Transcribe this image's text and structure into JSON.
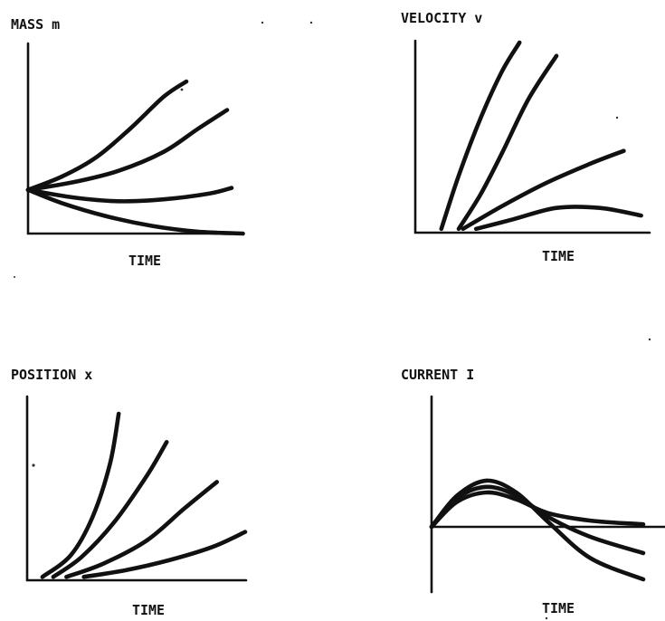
{
  "chart_data": [
    {
      "type": "line",
      "title": "MASS m",
      "xlabel": "TIME",
      "ylabel": "",
      "grid": false,
      "series": [
        {
          "x": [
            0,
            0.15,
            0.3,
            0.45,
            0.6,
            0.7
          ],
          "values": [
            0.23,
            0.3,
            0.4,
            0.55,
            0.72,
            0.8
          ]
        },
        {
          "x": [
            0,
            0.2,
            0.4,
            0.6,
            0.75,
            0.88
          ],
          "values": [
            0.23,
            0.27,
            0.33,
            0.43,
            0.55,
            0.65
          ]
        },
        {
          "x": [
            0,
            0.2,
            0.4,
            0.6,
            0.8,
            0.9
          ],
          "values": [
            0.23,
            0.19,
            0.17,
            0.18,
            0.21,
            0.24
          ]
        },
        {
          "x": [
            0,
            0.15,
            0.35,
            0.55,
            0.75,
            0.95
          ],
          "values": [
            0.23,
            0.16,
            0.09,
            0.04,
            0.01,
            0.0
          ]
        }
      ]
    },
    {
      "type": "line",
      "title": "VELOCITY v",
      "xlabel": "TIME",
      "ylabel": "",
      "grid": false,
      "series": [
        {
          "x": [
            0.12,
            0.2,
            0.3,
            0.4,
            0.48
          ],
          "values": [
            0.02,
            0.3,
            0.6,
            0.85,
            1.0
          ]
        },
        {
          "x": [
            0.2,
            0.3,
            0.4,
            0.52,
            0.65
          ],
          "values": [
            0.02,
            0.2,
            0.42,
            0.7,
            0.93
          ]
        },
        {
          "x": [
            0.22,
            0.4,
            0.6,
            0.8,
            0.96
          ],
          "values": [
            0.02,
            0.14,
            0.26,
            0.36,
            0.43
          ]
        },
        {
          "x": [
            0.28,
            0.45,
            0.65,
            0.85,
            1.04
          ],
          "values": [
            0.02,
            0.07,
            0.13,
            0.13,
            0.09
          ]
        }
      ]
    },
    {
      "type": "line",
      "title": "POSITION x",
      "xlabel": "TIME",
      "ylabel": "",
      "grid": false,
      "series": [
        {
          "x": [
            0.07,
            0.2,
            0.3,
            0.38,
            0.42
          ],
          "values": [
            0.02,
            0.15,
            0.38,
            0.7,
            1.0
          ]
        },
        {
          "x": [
            0.12,
            0.25,
            0.4,
            0.55,
            0.64
          ],
          "values": [
            0.02,
            0.14,
            0.35,
            0.63,
            0.83
          ]
        },
        {
          "x": [
            0.18,
            0.35,
            0.55,
            0.72,
            0.87
          ],
          "values": [
            0.02,
            0.1,
            0.24,
            0.43,
            0.59
          ]
        },
        {
          "x": [
            0.26,
            0.45,
            0.65,
            0.85,
            1.0
          ],
          "values": [
            0.02,
            0.06,
            0.12,
            0.2,
            0.29
          ]
        }
      ]
    },
    {
      "type": "line",
      "title": "CURRENT I",
      "xlabel": "TIME",
      "ylabel": "",
      "grid": false,
      "series": [
        {
          "x": [
            0,
            0.12,
            0.26,
            0.4,
            0.55,
            0.75,
            1.0
          ],
          "values": [
            0,
            0.5,
            0.74,
            0.55,
            0.08,
            -0.5,
            -0.84
          ]
        },
        {
          "x": [
            0,
            0.12,
            0.26,
            0.4,
            0.55,
            0.75,
            1.0
          ],
          "values": [
            0,
            0.46,
            0.64,
            0.5,
            0.16,
            -0.16,
            -0.42
          ]
        },
        {
          "x": [
            0,
            0.12,
            0.26,
            0.4,
            0.55,
            0.75,
            1.0
          ],
          "values": [
            0,
            0.4,
            0.55,
            0.44,
            0.22,
            0.1,
            0.04
          ]
        }
      ]
    }
  ]
}
